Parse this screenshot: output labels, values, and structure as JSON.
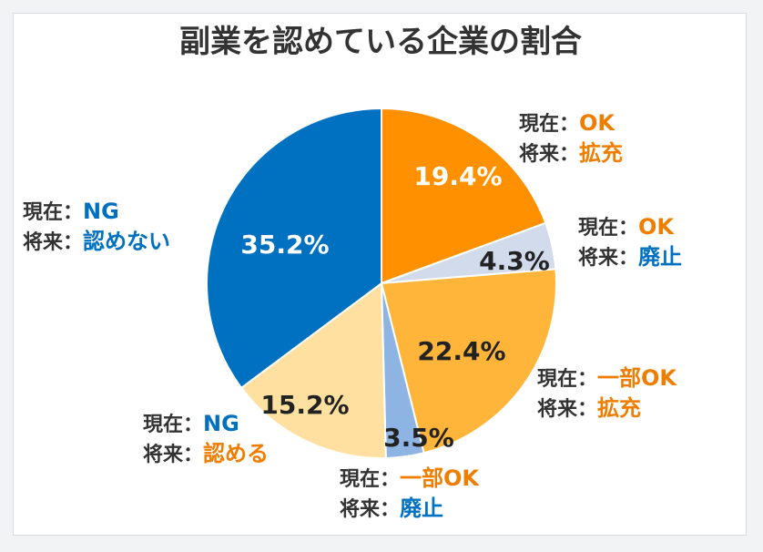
{
  "chart_data": {
    "type": "pie",
    "title": "副業を認めている企業の割合",
    "slices": [
      {
        "value": 19.4,
        "label": "19.4%",
        "color": "#ff9100",
        "text_color": "#ffffff",
        "annotation": [
          {
            "prefix": "現在：",
            "text": "OK",
            "color": "#ef7d00"
          },
          {
            "prefix": "将来：",
            "text": "拡充",
            "color": "#ef7d00"
          }
        ]
      },
      {
        "value": 4.3,
        "label": "4.3%",
        "color": "#d2dbeb",
        "text_color": "#222222",
        "annotation": [
          {
            "prefix": "現在：",
            "text": "OK",
            "color": "#ef7d00"
          },
          {
            "prefix": "将来：",
            "text": "廃止",
            "color": "#0070c0"
          }
        ]
      },
      {
        "value": 22.4,
        "label": "22.4%",
        "color": "#ffb43a",
        "text_color": "#222222",
        "annotation": [
          {
            "prefix": "現在：",
            "text": "一部OK",
            "color": "#ef7d00"
          },
          {
            "prefix": "将来：",
            "text": "拡充",
            "color": "#ef7d00"
          }
        ]
      },
      {
        "value": 3.5,
        "label": "3.5%",
        "color": "#8eb4e3",
        "text_color": "#222222",
        "annotation": [
          {
            "prefix": "現在：",
            "text": "一部OK",
            "color": "#ef7d00"
          },
          {
            "prefix": "将来：",
            "text": "廃止",
            "color": "#0070c0"
          }
        ]
      },
      {
        "value": 15.2,
        "label": "15.2%",
        "color": "#ffe0a0",
        "text_color": "#222222",
        "annotation": [
          {
            "prefix": "現在：",
            "text": "NG",
            "color": "#0070c0"
          },
          {
            "prefix": "将来：",
            "text": "認める",
            "color": "#ef7d00"
          }
        ]
      },
      {
        "value": 35.2,
        "label": "35.2%",
        "color": "#0070c0",
        "text_color": "#ffffff",
        "annotation": [
          {
            "prefix": "現在：",
            "text": "NG",
            "color": "#0070c0"
          },
          {
            "prefix": "将来：",
            "text": "認めない",
            "color": "#0070c0"
          }
        ]
      }
    ]
  }
}
